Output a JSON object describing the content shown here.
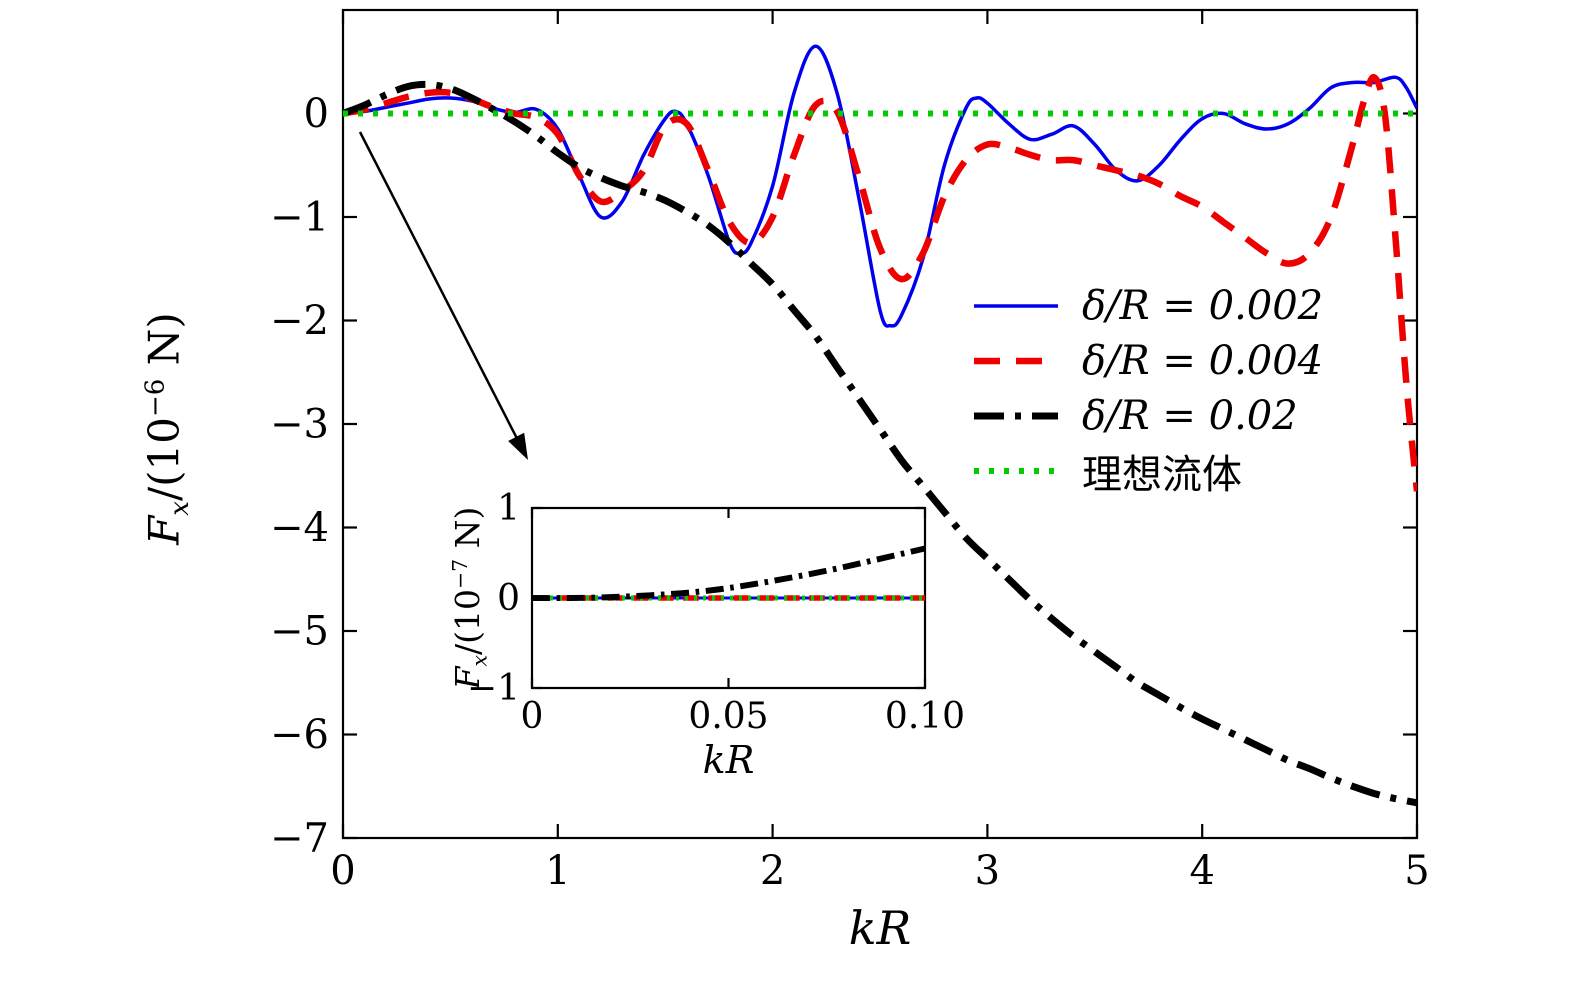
{
  "figure": {
    "background": "#ffffff"
  },
  "chart_data": {
    "type": "line",
    "title": "",
    "xlabel": "kR",
    "ylabel_plain": "Fx/(10^-6 N)",
    "ylabel_parts": {
      "var": "F",
      "sub": "x",
      "mid": "/(10",
      "sup": "−6",
      "end": " N)"
    },
    "xlim": [
      0,
      5
    ],
    "ylim": [
      -7,
      1.0
    ],
    "xticks": [
      0,
      1,
      2,
      3,
      4,
      5
    ],
    "xtick_labels": [
      "0",
      "1",
      "2",
      "3",
      "4",
      "5"
    ],
    "yticks": [
      0,
      -1,
      -2,
      -3,
      -4,
      -5,
      -6,
      -7
    ],
    "ytick_labels": [
      "0",
      "−1",
      "−2",
      "−3",
      "−4",
      "−5",
      "−6",
      "−7"
    ],
    "grid": false,
    "legend_position": "inside-center-right",
    "series": [
      {
        "id": "delta-0002",
        "name": "δ/R = 0.002",
        "color": "#0000ee",
        "style": "solid",
        "math": true,
        "x": [
          0,
          0.1,
          0.2,
          0.3,
          0.4,
          0.5,
          0.6,
          0.7,
          0.8,
          0.9,
          1.0,
          1.1,
          1.2,
          1.3,
          1.4,
          1.5,
          1.55,
          1.6,
          1.7,
          1.8,
          1.85,
          1.9,
          2.0,
          2.1,
          2.2,
          2.3,
          2.4,
          2.5,
          2.55,
          2.6,
          2.7,
          2.8,
          2.9,
          2.95,
          3.0,
          3.1,
          3.2,
          3.3,
          3.4,
          3.5,
          3.6,
          3.7,
          3.8,
          3.9,
          4.0,
          4.1,
          4.2,
          4.3,
          4.4,
          4.5,
          4.6,
          4.7,
          4.8,
          4.9,
          4.95,
          5.0
        ],
        "y": [
          0,
          0.02,
          0.06,
          0.1,
          0.14,
          0.15,
          0.12,
          0.05,
          0.01,
          0.04,
          -0.15,
          -0.6,
          -1.0,
          -0.85,
          -0.4,
          -0.05,
          0.02,
          -0.1,
          -0.6,
          -1.25,
          -1.35,
          -1.25,
          -0.7,
          0.2,
          0.65,
          0.2,
          -0.8,
          -1.9,
          -2.05,
          -1.95,
          -1.4,
          -0.5,
          0.05,
          0.15,
          0.1,
          -0.1,
          -0.25,
          -0.2,
          -0.12,
          -0.3,
          -0.55,
          -0.65,
          -0.5,
          -0.25,
          -0.05,
          0.0,
          -0.1,
          -0.15,
          -0.1,
          0.05,
          0.25,
          0.3,
          0.3,
          0.35,
          0.25,
          0.05
        ]
      },
      {
        "id": "delta-0004",
        "name": "δ/R = 0.004",
        "color": "#ee0000",
        "style": "dashed",
        "math": true,
        "x": [
          0,
          0.1,
          0.2,
          0.3,
          0.4,
          0.5,
          0.6,
          0.7,
          0.8,
          0.9,
          1.0,
          1.1,
          1.2,
          1.3,
          1.4,
          1.5,
          1.6,
          1.7,
          1.8,
          1.9,
          2.0,
          2.1,
          2.2,
          2.3,
          2.4,
          2.5,
          2.6,
          2.7,
          2.8,
          2.9,
          3.0,
          3.1,
          3.2,
          3.3,
          3.4,
          3.5,
          3.6,
          3.7,
          3.8,
          3.9,
          4.0,
          4.1,
          4.2,
          4.3,
          4.4,
          4.5,
          4.6,
          4.7,
          4.75,
          4.8,
          4.85,
          4.9,
          4.95,
          5.0
        ],
        "y": [
          0,
          0.04,
          0.1,
          0.16,
          0.2,
          0.2,
          0.14,
          0.06,
          0,
          -0.04,
          -0.2,
          -0.6,
          -0.85,
          -0.75,
          -0.55,
          -0.12,
          -0.1,
          -0.55,
          -1.05,
          -1.25,
          -1.0,
          -0.4,
          0.08,
          0.02,
          -0.6,
          -1.3,
          -1.6,
          -1.35,
          -0.8,
          -0.45,
          -0.3,
          -0.33,
          -0.4,
          -0.45,
          -0.45,
          -0.5,
          -0.55,
          -0.6,
          -0.68,
          -0.8,
          -0.9,
          -1.05,
          -1.2,
          -1.35,
          -1.45,
          -1.35,
          -1.0,
          -0.3,
          0.1,
          0.35,
          0.0,
          -1.2,
          -2.6,
          -3.65
        ]
      },
      {
        "id": "delta-002",
        "name": "δ/R = 0.02",
        "color": "#000000",
        "style": "dashdot",
        "math": true,
        "x": [
          0,
          0.1,
          0.2,
          0.3,
          0.4,
          0.5,
          0.6,
          0.7,
          0.8,
          0.9,
          1.0,
          1.1,
          1.2,
          1.3,
          1.4,
          1.5,
          1.6,
          1.7,
          1.8,
          1.9,
          2.0,
          2.1,
          2.2,
          2.3,
          2.4,
          2.5,
          2.6,
          2.7,
          2.8,
          2.9,
          3.0,
          3.1,
          3.2,
          3.3,
          3.4,
          3.5,
          3.6,
          3.7,
          3.8,
          3.9,
          4.0,
          4.1,
          4.2,
          4.3,
          4.4,
          4.5,
          4.6,
          4.7,
          4.8,
          4.9,
          5.0
        ],
        "y": [
          0,
          0.08,
          0.18,
          0.26,
          0.28,
          0.24,
          0.15,
          0.04,
          -0.08,
          -0.22,
          -0.38,
          -0.52,
          -0.62,
          -0.7,
          -0.76,
          -0.84,
          -0.95,
          -1.08,
          -1.25,
          -1.45,
          -1.65,
          -1.9,
          -2.15,
          -2.45,
          -2.75,
          -3.05,
          -3.35,
          -3.6,
          -3.85,
          -4.1,
          -4.3,
          -4.5,
          -4.7,
          -4.88,
          -5.05,
          -5.2,
          -5.35,
          -5.5,
          -5.62,
          -5.74,
          -5.85,
          -5.95,
          -6.05,
          -6.15,
          -6.25,
          -6.33,
          -6.42,
          -6.5,
          -6.57,
          -6.62,
          -6.66
        ]
      },
      {
        "id": "ideal-fluid",
        "name": "理想流体",
        "color": "#00cc00",
        "style": "dotted",
        "math": false,
        "x": [
          0,
          5
        ],
        "y": [
          0,
          0
        ]
      }
    ],
    "inset": {
      "xlabel": "kR",
      "ylabel_plain": "Fx/(10^-7 N)",
      "ylabel_parts": {
        "var": "F",
        "sub": "x",
        "mid": "/(10",
        "sup": "−7",
        "end": " N)"
      },
      "xlim": [
        0,
        0.1
      ],
      "ylim": [
        -1,
        1
      ],
      "xticks": [
        0,
        0.05,
        0.1
      ],
      "xtick_labels": [
        "0",
        "0.05",
        "0.10"
      ],
      "yticks": [
        1,
        0,
        -1
      ],
      "ytick_labels": [
        "1",
        "0",
        "−1"
      ],
      "series": [
        {
          "id": "inset-delta-0002",
          "name": "δ/R = 0.002",
          "color": "#0000ee",
          "style": "solid",
          "x": [
            0,
            0.1
          ],
          "y": [
            0,
            0
          ]
        },
        {
          "id": "inset-delta-0004",
          "name": "δ/R = 0.004",
          "color": "#ee0000",
          "style": "dashed",
          "x": [
            0,
            0.1
          ],
          "y": [
            0,
            0
          ]
        },
        {
          "id": "inset-ideal-fluid",
          "name": "理想流体",
          "color": "#00cc00",
          "style": "dotted",
          "x": [
            0,
            0.1
          ],
          "y": [
            0,
            0
          ]
        },
        {
          "id": "inset-delta-002",
          "name": "δ/R = 0.02",
          "color": "#000000",
          "style": "dashdot",
          "x": [
            0,
            0.01,
            0.02,
            0.03,
            0.04,
            0.05,
            0.06,
            0.07,
            0.08,
            0.09,
            0.1
          ],
          "y": [
            0,
            0,
            0.01,
            0.03,
            0.06,
            0.11,
            0.18,
            0.26,
            0.35,
            0.45,
            0.55
          ]
        }
      ]
    }
  }
}
